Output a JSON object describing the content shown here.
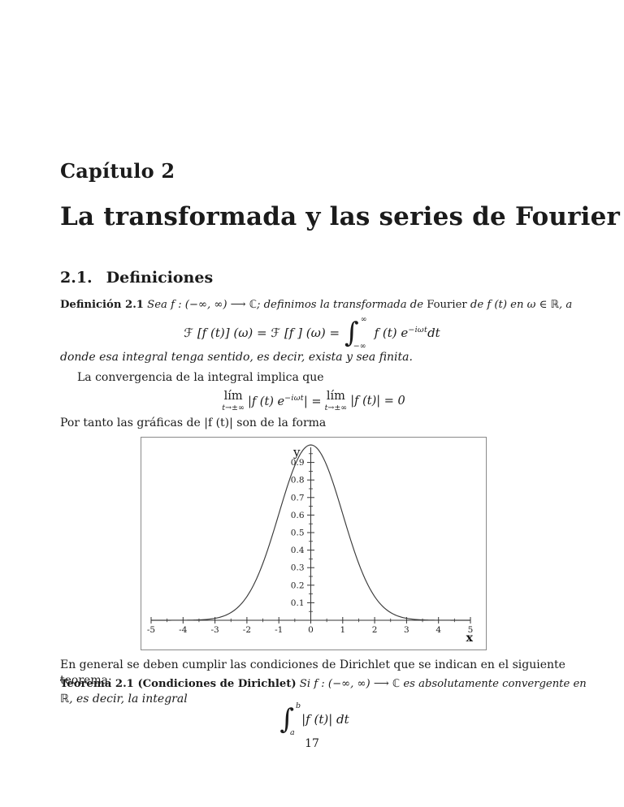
{
  "page": {
    "chapter_label": "Capítulo 2",
    "chapter_title": "La transformada y las series de Fourier",
    "section_number": "2.1.",
    "section_title": "Definiciones",
    "page_number": "17"
  },
  "definition": {
    "label": "Definición 2.1",
    "body_italic_1": " Sea f : (−∞, ∞) ⟶ ℂ; definimos la transformada de ",
    "body_roman": "Fourier",
    "body_italic_2": " de f (t) en ω ∈ ℝ, a"
  },
  "formula_transform": {
    "lhs": "ℱ [f (t)] (ω) = ℱ [f ] (ω) =",
    "integral_symbol": "∫",
    "upper_limit": "∞",
    "lower_limit": "−∞",
    "integrand": "f (t) e",
    "exponent": "−iωt",
    "differential": "dt"
  },
  "paragraphs": {
    "where_integral": "donde esa integral tenga sentido, es decir, exista y sea finita.",
    "convergence": "La convergencia de la integral implica que",
    "por_tanto": "Por tanto las gráficas de |f (t)| son de la forma",
    "en_general": "En general se deben cumplir las condiciones de Dirichlet que se indican en el siguiente teorema:"
  },
  "formula_limit": {
    "lim_word": "lím",
    "lim_sub": "t→±∞",
    "arg1_pre": "|f (t) e",
    "arg1_sup": "−iωt",
    "arg1_close": "| =",
    "arg2": "|f (t)| = 0"
  },
  "theorem": {
    "label": "Teorema 2.1 (Condiciones de Dirichlet)",
    "line1_italic": " Si f : (−∞, ∞) ⟶ ℂ es absolutamente convergente en",
    "line2_italic": "ℝ, es decir, la integral"
  },
  "formula_dirichlet": {
    "integral_symbol": "∫",
    "upper_limit": "b",
    "lower_limit": "a",
    "body": "|f (t)| dt"
  },
  "chart_data": {
    "type": "line",
    "title": "",
    "xlabel": "x",
    "ylabel": "y",
    "xlim": [
      -5,
      5
    ],
    "ylim": [
      0,
      1
    ],
    "x_tick_labels": [
      -5,
      -4,
      -3,
      -2,
      -1,
      0,
      1,
      2,
      3,
      4,
      5
    ],
    "y_tick_labels": [
      0.1,
      0.2,
      0.3,
      0.4,
      0.5,
      0.6,
      0.7,
      0.8,
      0.9
    ],
    "x_minor_step": 0.5,
    "y_minor_step": 0.05,
    "grid": false,
    "legend": false,
    "curve": {
      "shape": "gaussian",
      "formula": "y = exp(-x^2/2)",
      "amplitude": 1,
      "mean": 0,
      "sigma": 1
    },
    "key_points": [
      {
        "x": -3,
        "y": 0.011
      },
      {
        "x": -2,
        "y": 0.135
      },
      {
        "x": -1,
        "y": 0.607
      },
      {
        "x": 0,
        "y": 1.0
      },
      {
        "x": 1,
        "y": 0.607
      },
      {
        "x": 2,
        "y": 0.135
      },
      {
        "x": 3,
        "y": 0.011
      }
    ],
    "axis_color": "#333333",
    "curve_color": "#3a3a3a",
    "border_color": "#8a8a8a"
  }
}
